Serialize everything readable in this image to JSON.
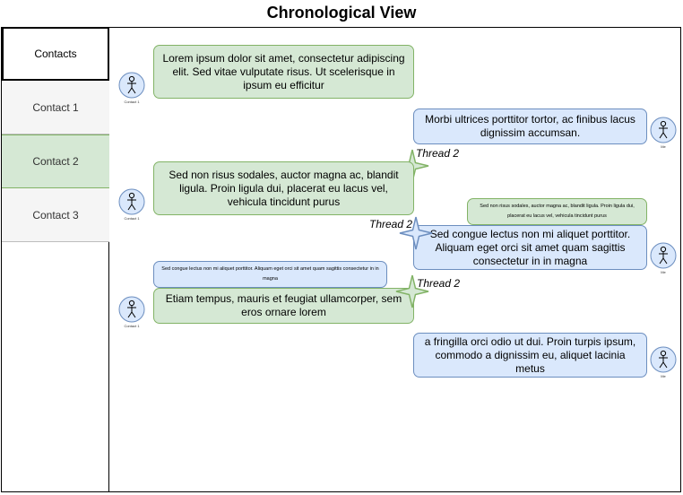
{
  "title": "Chronological View",
  "sidebar": {
    "header": "Contacts",
    "items": [
      "Contact 1",
      "Contact 2",
      "Contact 3"
    ]
  },
  "messages": {
    "m1": "Lorem ipsum dolor sit amet, consectetur adipiscing elit. Sed vitae vulputate risus. Ut scelerisque in ipsum eu efficitur",
    "m2": "Morbi ultrices porttitor tortor, ac finibus lacus dignissim accumsan.",
    "m3": "Sed non risus sodales, auctor magna ac, blandit ligula. Proin ligula dui, placerat eu lacus vel, vehicula tincidunt purus",
    "m4_quote": "Sed non risus sodales, auctor magna ac, blandit ligula. Proin ligula dui, placerat eu lacus vel, vehicula tincidunt purus",
    "m4": "Sed congue lectus non mi aliquet porttitor. Aliquam eget orci sit amet quam sagittis consectetur in in magna",
    "m5_quote": "Sed congue lectus non mi aliquet porttitor. Aliquam eget orci sit amet quam sagittis consectetur in in magna",
    "m5": "Etiam tempus, mauris et feugiat ullamcorper, sem eros ornare lorem",
    "m6": "a fringilla orci odio ut dui. Proin turpis ipsum, commodo a dignissim eu, aliquet lacinia metus"
  },
  "threads": {
    "t1": "Thread 2",
    "t2": "Thread 2",
    "t3": "Thread 2"
  },
  "avatars": {
    "contact": "Contact 1",
    "me": "Me"
  },
  "colors": {
    "green_fill": "#d5e8d4",
    "green_stroke": "#82b366",
    "blue_fill": "#dae8fc",
    "blue_stroke": "#6c8ebf"
  }
}
